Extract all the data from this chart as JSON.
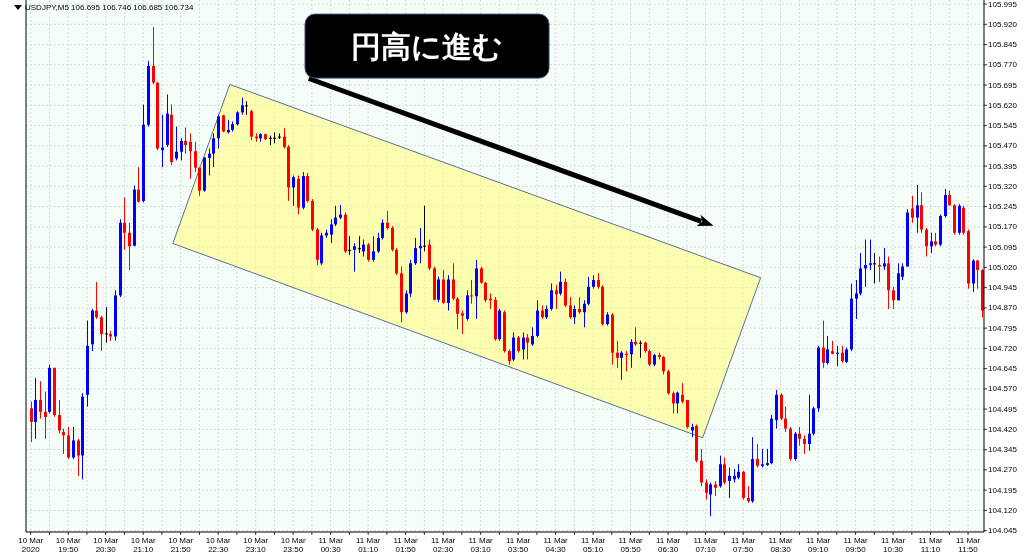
{
  "chart_data": {
    "type": "candlestick",
    "title": "USDJPY,M5 106.695 106.746 106.685 106.734",
    "annotations": [
      "円高に進む"
    ],
    "colors": [
      "#ff0000",
      "#0000ff",
      "#ff0000",
      "#ff0000",
      "#0000ff",
      "#ff0000",
      "#ff0000",
      "#ff0000",
      "#ff0000",
      "#0000ff",
      "#ff0000",
      "#0000ff",
      "#0000ff",
      "#0000ff",
      "#ff0000",
      "#ff0000",
      "#000000",
      "#ff0000",
      "#0000ff",
      "#0000ff",
      "#ff0000",
      "#ff0000",
      "#0000ff",
      "#ff0000",
      "#0000ff",
      "#0000ff",
      "#ff0000",
      "#ff0000",
      "#0000ff",
      "#0000ff",
      "#ff0000",
      "#0000ff",
      "#0000ff",
      "#ff0000",
      "#ff0000",
      "#ff0000",
      "#ff0000",
      "#0000ff",
      "#0000ff",
      "#0000ff",
      "#0000ff",
      "#ff0000",
      "#0000ff",
      "#0000ff",
      "#0000ff",
      "#0000ff",
      "#000000",
      "#ff0000",
      "#ff0000",
      "#0000ff",
      "#ff0000",
      "#000000",
      "#000000",
      "#000000",
      "#ff0000",
      "#ff0000",
      "#0000ff",
      "#ff0000",
      "#0000ff",
      "#ff0000",
      "#ff0000",
      "#ff0000",
      "#0000ff",
      "#0000ff",
      "#0000ff",
      "#0000ff",
      "#0000ff",
      "#ff0000",
      "#000000",
      "#0000ff",
      "#000000",
      "#0000ff",
      "#ff0000",
      "#0000ff",
      "#0000ff",
      "#0000ff",
      "#ff0000",
      "#ff0000",
      "#ff0000",
      "#ff0000",
      "#0000ff",
      "#0000ff",
      "#0000ff",
      "#0000ff",
      "#000000",
      "#ff0000",
      "#ff0000",
      "#0000ff",
      "#ff0000",
      "#0000ff",
      "#ff0000",
      "#ff0000",
      "#ff0000",
      "#0000ff",
      "#ff0000",
      "#0000ff",
      "#ff0000",
      "#ff0000",
      "#ff0000",
      "#ff0000",
      "#0000ff",
      "#ff0000",
      "#ff0000",
      "#0000ff",
      "#ff0000",
      "#0000ff",
      "#ff0000",
      "#0000ff",
      "#0000ff",
      "#ff0000",
      "#0000ff",
      "#0000ff",
      "#ff0000",
      "#0000ff",
      "#ff0000",
      "#ff0000",
      "#0000ff",
      "#ff0000",
      "#0000ff",
      "#0000ff",
      "#0000ff",
      "#ff0000",
      "#ff0000",
      "#0000ff",
      "#ff0000",
      "#ff0000",
      "#0000ff",
      "#ff0000",
      "#0000ff",
      "#ff0000",
      "#000000",
      "#ff0000",
      "#ff0000",
      "#0000ff",
      "#ff0000",
      "#ff0000",
      "#ff0000",
      "#ff0000",
      "#0000ff",
      "#ff0000",
      "#ff0000",
      "#0000ff",
      "#ff0000",
      "#ff0000",
      "#ff0000",
      "#0000ff",
      "#ff0000",
      "#0000ff",
      "#ff0000",
      "#0000ff",
      "#0000ff",
      "#0000ff",
      "#ff0000",
      "#ff0000",
      "#0000ff",
      "#ff0000",
      "#0000ff",
      "#0000ff",
      "#0000ff",
      "#0000ff",
      "#ff0000",
      "#ff0000",
      "#ff0000",
      "#0000ff",
      "#ff0000",
      "#ff0000",
      "#0000ff",
      "#0000ff",
      "#0000ff",
      "#ff0000",
      "#0000ff",
      "#ff0000",
      "#0000ff",
      "#ff0000",
      "#0000ff",
      "#0000ff",
      "#0000ff",
      "#0000ff",
      "#0000ff",
      "#0000ff",
      "#000000",
      "#ff0000",
      "#0000ff",
      "#ff0000",
      "#ff0000",
      "#0000ff",
      "#0000ff",
      "#0000ff",
      "#ff0000",
      "#0000ff",
      "#ff0000",
      "#ff0000",
      "#0000ff",
      "#ff0000",
      "#0000ff",
      "#0000ff",
      "#ff0000",
      "#ff0000",
      "#0000ff",
      "#ff0000",
      "#ff0000",
      "#0000ff",
      "#ff0000",
      "#ff0000"
    ],
    "grid": true,
    "xlim": [
      "2020-03-10T19:05",
      "2020-03-11T12:07"
    ],
    "ylim": [
      104.04,
      106.01
    ],
    "yticks": [
      105.995,
      {
        "value": 105.92,
        "label": "105.920"
      },
      105.845,
      {
        "value": 105.77,
        "label": "105.770"
      },
      105.695,
      {
        "value": 105.62,
        "label": "105.620"
      },
      105.545,
      {
        "value": 105.47,
        "label": "105.470"
      },
      105.395,
      {
        "value": 105.32,
        "label": "105.320"
      },
      105.245,
      {
        "value": 105.17,
        "label": "105.170"
      },
      105.095,
      {
        "value": 105.02,
        "label": "105.020"
      },
      104.945,
      {
        "value": 104.87,
        "label": "104.870"
      },
      104.795,
      {
        "value": 104.72,
        "label": "104.720"
      },
      104.645,
      {
        "value": 104.57,
        "label": "104.570"
      },
      104.495,
      {
        "value": 104.42,
        "label": "104.420"
      },
      104.345,
      {
        "value": 104.27,
        "label": "104.270"
      },
      104.195,
      {
        "value": 104.12,
        "label": "104.120"
      },
      104.045
    ],
    "xticks": [
      {
        "value": "2020-03-10T19:10",
        "label": "10 Mar 2020"
      },
      {
        "value": "2020-03-10T19:30",
        "label": null
      },
      {
        "value": "2020-03-10T19:50",
        "label": "10 Mar 19:50"
      },
      {
        "value": "2020-03-10T20:10",
        "label": null
      },
      {
        "value": "2020-03-10T20:30",
        "label": "10 Mar 20:30"
      },
      {
        "value": "2020-03-10T20:50",
        "label": null
      },
      {
        "value": "2020-03-10T21:10",
        "label": "10 Mar 21:10"
      },
      {
        "value": "2020-03-10T21:30",
        "label": null
      },
      {
        "value": "2020-03-10T21:50",
        "label": "10 Mar 21:50"
      },
      {
        "value": "2020-03-10T22:10",
        "label": null
      },
      {
        "value": "2020-03-10T22:30",
        "label": "10 Mar 22:30"
      },
      {
        "value": "2020-03-10T22:50",
        "label": null
      },
      {
        "value": "2020-03-10T23:10",
        "label": "10 Mar 23:10"
      },
      {
        "value": "2020-03-10T23:30",
        "label": null
      },
      {
        "value": "2020-03-10T23:50",
        "label": "10 Mar 23:50"
      },
      {
        "value": "2020-03-11T00:10",
        "label": null
      },
      {
        "value": "2020-03-11T00:30",
        "label": "11 Mar 00:30"
      },
      {
        "value": "2020-03-11T00:50",
        "label": null
      },
      {
        "value": "2020-03-11T01:10",
        "label": "11 Mar 01:10"
      },
      {
        "value": "2020-03-11T01:30",
        "label": null
      },
      {
        "value": "2020-03-11T01:50",
        "label": "11 Mar 01:50"
      },
      {
        "value": "2020-03-11T02:10",
        "label": null
      },
      {
        "value": "2020-03-11T02:30",
        "label": "11 Mar 02:30"
      },
      {
        "value": "2020-03-11T02:50",
        "label": null
      },
      {
        "value": "2020-03-11T03:10",
        "label": "11 Mar 03:10"
      },
      {
        "value": "2020-03-11T03:30",
        "label": null
      },
      {
        "value": "2020-03-11T03:50",
        "label": "11 Mar 03:50"
      },
      {
        "value": "2020-03-11T04:10",
        "label": null
      },
      {
        "value": "2020-03-11T04:30",
        "label": "11 Mar 04:30"
      },
      {
        "value": "2020-03-11T04:50",
        "label": null
      },
      {
        "value": "2020-03-11T05:10",
        "label": "11 Mar 05:10"
      },
      {
        "value": "2020-03-11T05:30",
        "label": null
      },
      {
        "value": "2020-03-11T05:50",
        "label": "11 Mar 05:50"
      },
      {
        "value": "2020-03-11T06:10",
        "label": null
      },
      {
        "value": "2020-03-11T06:30",
        "label": "11 Mar 06:30"
      },
      {
        "value": "2020-03-11T06:50",
        "label": null
      },
      {
        "value": "2020-03-11T07:10",
        "label": "11 Mar 07:10"
      },
      {
        "value": "2020-03-11T07:30",
        "label": null
      },
      {
        "value": "2020-03-11T07:50",
        "label": "11 Mar 07:50"
      },
      {
        "value": "2020-03-11T08:10",
        "label": null
      },
      {
        "value": "2020-03-11T08:30",
        "label": "11 Mar 08:30"
      },
      {
        "value": "2020-03-11T08:50",
        "label": null
      },
      {
        "value": "2020-03-11T09:10",
        "label": "11 Mar 09:10"
      },
      {
        "value": "2020-03-11T09:30",
        "label": null
      },
      {
        "value": "2020-03-11T09:50",
        "label": "11 Mar 09:50"
      },
      {
        "value": "2020-03-11T10:10",
        "label": null
      },
      {
        "value": "2020-03-11T10:30",
        "label": "11 Mar 10:30"
      },
      {
        "value": "2020-03-11T10:50",
        "label": null
      },
      {
        "value": "2020-03-11T11:10",
        "label": "11 Mar 11:10"
      },
      {
        "value": "2020-03-11T11:30",
        "label": null
      },
      {
        "value": "2020-03-11T11:50",
        "label": "11 Mar 11:50"
      }
    ],
    "x": [
      "2020-03-10T19:10",
      "2020-03-10T19:15",
      "2020-03-10T19:20",
      "2020-03-10T19:25",
      "2020-03-10T19:30",
      "2020-03-10T19:35",
      "2020-03-10T19:40",
      "2020-03-10T19:45",
      "2020-03-10T19:50",
      "2020-03-10T19:55",
      "2020-03-10T20:00",
      "2020-03-10T20:05",
      "2020-03-10T20:10",
      "2020-03-10T20:15",
      "2020-03-10T20:20",
      "2020-03-10T20:25",
      "2020-03-10T20:30",
      "2020-03-10T20:35",
      "2020-03-10T20:40",
      "2020-03-10T20:45",
      "2020-03-10T20:50",
      "2020-03-10T20:55",
      "2020-03-10T21:00",
      "2020-03-10T21:05",
      "2020-03-10T21:10",
      "2020-03-10T21:15",
      "2020-03-10T21:20",
      "2020-03-10T21:25",
      "2020-03-10T21:30",
      "2020-03-10T21:35",
      "2020-03-10T21:40",
      "2020-03-10T21:45",
      "2020-03-10T21:50",
      "2020-03-10T21:55",
      "2020-03-10T22:00",
      "2020-03-10T22:05",
      "2020-03-10T22:10",
      "2020-03-10T22:15",
      "2020-03-10T22:20",
      "2020-03-10T22:25",
      "2020-03-10T22:30",
      "2020-03-10T22:35",
      "2020-03-10T22:40",
      "2020-03-10T22:45",
      "2020-03-10T22:50",
      "2020-03-10T22:55",
      "2020-03-10T23:00",
      "2020-03-10T23:05",
      "2020-03-10T23:10",
      "2020-03-10T23:15",
      "2020-03-10T23:20",
      "2020-03-10T23:25",
      "2020-03-10T23:30",
      "2020-03-10T23:35",
      "2020-03-10T23:40",
      "2020-03-10T23:45",
      "2020-03-10T23:50",
      "2020-03-10T23:55",
      "2020-03-11T00:00",
      "2020-03-11T00:05",
      "2020-03-11T00:10",
      "2020-03-11T00:15",
      "2020-03-11T00:20",
      "2020-03-11T00:25",
      "2020-03-11T00:30",
      "2020-03-11T00:35",
      "2020-03-11T00:40",
      "2020-03-11T00:45",
      "2020-03-11T00:50",
      "2020-03-11T00:55",
      "2020-03-11T01:00",
      "2020-03-11T01:05",
      "2020-03-11T01:10",
      "2020-03-11T01:15",
      "2020-03-11T01:20",
      "2020-03-11T01:25",
      "2020-03-11T01:30",
      "2020-03-11T01:35",
      "2020-03-11T01:40",
      "2020-03-11T01:45",
      "2020-03-11T01:50",
      "2020-03-11T01:55",
      "2020-03-11T02:00",
      "2020-03-11T02:05",
      "2020-03-11T02:10",
      "2020-03-11T02:15",
      "2020-03-11T02:20",
      "2020-03-11T02:25",
      "2020-03-11T02:30",
      "2020-03-11T02:35",
      "2020-03-11T02:40",
      "2020-03-11T02:45",
      "2020-03-11T02:50",
      "2020-03-11T02:55",
      "2020-03-11T03:00",
      "2020-03-11T03:05",
      "2020-03-11T03:10",
      "2020-03-11T03:15",
      "2020-03-11T03:20",
      "2020-03-11T03:25",
      "2020-03-11T03:30",
      "2020-03-11T03:35",
      "2020-03-11T03:40",
      "2020-03-11T03:45",
      "2020-03-11T03:50",
      "2020-03-11T03:55",
      "2020-03-11T04:00",
      "2020-03-11T04:05",
      "2020-03-11T04:10",
      "2020-03-11T04:15",
      "2020-03-11T04:20",
      "2020-03-11T04:25",
      "2020-03-11T04:30",
      "2020-03-11T04:35",
      "2020-03-11T04:40",
      "2020-03-11T04:45",
      "2020-03-11T04:50",
      "2020-03-11T04:55",
      "2020-03-11T05:00",
      "2020-03-11T05:05",
      "2020-03-11T05:10",
      "2020-03-11T05:15",
      "2020-03-11T05:20",
      "2020-03-11T05:25",
      "2020-03-11T05:30",
      "2020-03-11T05:35",
      "2020-03-11T05:40",
      "2020-03-11T05:45",
      "2020-03-11T05:50",
      "2020-03-11T05:55",
      "2020-03-11T06:00",
      "2020-03-11T06:05",
      "2020-03-11T06:10",
      "2020-03-11T06:15",
      "2020-03-11T06:20",
      "2020-03-11T06:25",
      "2020-03-11T06:30",
      "2020-03-11T06:35",
      "2020-03-11T06:40",
      "2020-03-11T06:45",
      "2020-03-11T06:50",
      "2020-03-11T06:55",
      "2020-03-11T07:00",
      "2020-03-11T07:05",
      "2020-03-11T07:10",
      "2020-03-11T07:15",
      "2020-03-11T07:20",
      "2020-03-11T07:25",
      "2020-03-11T07:30",
      "2020-03-11T07:35",
      "2020-03-11T07:40",
      "2020-03-11T07:45",
      "2020-03-11T07:50",
      "2020-03-11T07:55",
      "2020-03-11T08:00",
      "2020-03-11T08:05",
      "2020-03-11T08:10",
      "2020-03-11T08:15",
      "2020-03-11T08:20",
      "2020-03-11T08:25",
      "2020-03-11T08:30",
      "2020-03-11T08:35",
      "2020-03-11T08:40",
      "2020-03-11T08:45",
      "2020-03-11T08:50",
      "2020-03-11T08:55",
      "2020-03-11T09:00",
      "2020-03-11T09:05",
      "2020-03-11T09:10",
      "2020-03-11T09:15",
      "2020-03-11T09:20",
      "2020-03-11T09:25",
      "2020-03-11T09:30",
      "2020-03-11T09:35",
      "2020-03-11T09:40",
      "2020-03-11T09:45",
      "2020-03-11T09:50",
      "2020-03-11T09:55",
      "2020-03-11T10:00",
      "2020-03-11T10:05",
      "2020-03-11T10:10",
      "2020-03-11T10:15",
      "2020-03-11T10:20",
      "2020-03-11T10:25",
      "2020-03-11T10:30",
      "2020-03-11T10:35",
      "2020-03-11T10:40",
      "2020-03-11T10:45",
      "2020-03-11T10:50",
      "2020-03-11T10:55",
      "2020-03-11T11:00",
      "2020-03-11T11:05",
      "2020-03-11T11:10",
      "2020-03-11T11:15",
      "2020-03-11T11:20",
      "2020-03-11T11:25",
      "2020-03-11T11:30",
      "2020-03-11T11:35",
      "2020-03-11T11:40",
      "2020-03-11T11:45",
      "2020-03-11T11:50",
      "2020-03-11T11:55",
      "2020-03-11T12:00",
      "2020-03-11T12:05"
    ],
    "ohlc": [
      [
        104.498,
        104.523,
        104.373,
        104.448
      ],
      [
        104.448,
        104.61,
        104.385,
        104.529
      ],
      [
        104.529,
        104.598,
        104.46,
        104.485
      ],
      [
        104.485,
        104.56,
        104.385,
        104.466
      ],
      [
        104.485,
        104.66,
        104.479,
        104.648
      ],
      [
        104.648,
        104.648,
        104.466,
        104.473
      ],
      [
        104.473,
        104.529,
        104.404,
        104.416
      ],
      [
        104.41,
        104.423,
        104.329,
        104.398
      ],
      [
        104.398,
        104.429,
        104.31,
        104.316
      ],
      [
        104.316,
        104.429,
        104.31,
        104.379
      ],
      [
        104.379,
        104.385,
        104.248,
        104.323
      ],
      [
        104.323,
        104.554,
        104.235,
        104.541
      ],
      [
        104.548,
        104.823,
        104.504,
        104.729
      ],
      [
        104.735,
        104.866,
        104.71,
        104.86
      ],
      [
        104.86,
        104.966,
        104.829,
        104.835
      ],
      [
        104.835,
        104.841,
        104.71,
        104.773
      ],
      [
        104.775,
        104.873,
        104.741,
        104.775
      ],
      [
        104.773,
        104.785,
        104.748,
        104.764
      ],
      [
        104.764,
        104.935,
        104.748,
        104.916
      ],
      [
        104.916,
        105.198,
        104.91,
        105.185
      ],
      [
        105.185,
        105.279,
        105.085,
        105.148
      ],
      [
        105.148,
        105.185,
        105.01,
        105.098
      ],
      [
        105.1,
        105.323,
        105.098,
        105.308
      ],
      [
        105.308,
        105.391,
        105.26,
        105.263
      ],
      [
        105.266,
        105.623,
        105.26,
        105.548
      ],
      [
        105.548,
        105.785,
        105.541,
        105.766
      ],
      [
        105.766,
        105.91,
        105.698,
        105.704
      ],
      [
        105.704,
        105.704,
        105.454,
        105.46
      ],
      [
        105.454,
        105.585,
        105.391,
        105.464
      ],
      [
        105.473,
        105.66,
        105.466,
        105.589
      ],
      [
        105.585,
        105.623,
        105.398,
        105.41
      ],
      [
        105.423,
        105.541,
        105.416,
        105.448
      ],
      [
        105.448,
        105.498,
        105.416,
        105.488
      ],
      [
        105.488,
        105.538,
        105.441,
        105.473
      ],
      [
        105.485,
        105.516,
        105.348,
        105.45
      ],
      [
        105.45,
        105.485,
        105.373,
        105.389
      ],
      [
        105.389,
        105.391,
        105.285,
        105.304
      ],
      [
        105.304,
        105.429,
        105.3,
        105.426
      ],
      [
        105.425,
        105.46,
        105.36,
        105.441
      ],
      [
        105.441,
        105.516,
        105.391,
        105.498
      ],
      [
        105.498,
        105.585,
        105.46,
        105.579
      ],
      [
        105.583,
        105.585,
        105.52,
        105.523
      ],
      [
        105.52,
        105.566,
        105.516,
        105.529
      ],
      [
        105.529,
        105.56,
        105.523,
        105.55
      ],
      [
        105.55,
        105.598,
        105.545,
        105.594
      ],
      [
        105.594,
        105.648,
        105.585,
        105.62
      ],
      [
        105.62,
        105.635,
        105.585,
        105.62
      ],
      [
        105.598,
        105.604,
        105.491,
        105.504
      ],
      [
        105.504,
        105.516,
        105.485,
        105.498
      ],
      [
        105.498,
        105.516,
        105.485,
        105.513
      ],
      [
        105.513,
        105.515,
        105.491,
        105.495
      ],
      [
        105.5,
        105.508,
        105.473,
        105.5
      ],
      [
        105.5,
        105.52,
        105.479,
        105.5
      ],
      [
        105.504,
        105.516,
        105.495,
        105.504
      ],
      [
        105.504,
        105.535,
        105.46,
        105.466
      ],
      [
        105.466,
        105.473,
        105.266,
        105.316
      ],
      [
        105.316,
        105.36,
        105.248,
        105.354
      ],
      [
        105.348,
        105.36,
        105.216,
        105.241
      ],
      [
        105.241,
        105.373,
        105.235,
        105.358
      ],
      [
        105.358,
        105.37,
        105.26,
        105.266
      ],
      [
        105.266,
        105.273,
        105.154,
        105.16
      ],
      [
        105.16,
        105.166,
        105.029,
        105.048
      ],
      [
        105.035,
        105.148,
        105.029,
        105.138
      ],
      [
        105.138,
        105.16,
        105.129,
        105.148
      ],
      [
        105.141,
        105.198,
        105.11,
        105.179
      ],
      [
        105.179,
        105.248,
        105.173,
        105.204
      ],
      [
        105.204,
        105.251,
        105.198,
        105.215
      ],
      [
        105.215,
        105.223,
        105.073,
        105.079
      ],
      [
        105.085,
        105.135,
        105.066,
        105.085
      ],
      [
        105.085,
        105.11,
        105.004,
        105.098
      ],
      [
        105.091,
        105.135,
        105.073,
        105.091
      ],
      [
        105.079,
        105.123,
        105.06,
        105.104
      ],
      [
        105.104,
        105.11,
        105.041,
        105.048
      ],
      [
        105.048,
        105.135,
        105.041,
        105.079
      ],
      [
        105.079,
        105.148,
        105.073,
        105.129
      ],
      [
        105.129,
        105.198,
        105.123,
        105.185
      ],
      [
        105.185,
        105.229,
        105.16,
        105.166
      ],
      [
        105.166,
        105.173,
        105.079,
        105.085
      ],
      [
        105.085,
        105.091,
        104.991,
        104.998
      ],
      [
        104.998,
        105.023,
        104.816,
        104.854
      ],
      [
        104.854,
        104.935,
        104.848,
        104.923
      ],
      [
        104.923,
        105.048,
        104.91,
        105.035
      ],
      [
        105.035,
        105.129,
        105.029,
        105.091
      ],
      [
        105.091,
        105.166,
        105.035,
        105.1
      ],
      [
        105.1,
        105.248,
        105.079,
        105.1
      ],
      [
        105.104,
        105.123,
        105.01,
        105.016
      ],
      [
        105.016,
        105.023,
        104.898,
        104.9
      ],
      [
        104.9,
        104.985,
        104.891,
        104.975
      ],
      [
        104.975,
        105.01,
        104.885,
        104.888
      ],
      [
        104.888,
        104.991,
        104.86,
        104.975
      ],
      [
        104.975,
        105.035,
        104.898,
        104.904
      ],
      [
        104.904,
        104.91,
        104.791,
        104.848
      ],
      [
        104.85,
        104.86,
        104.773,
        104.841
      ],
      [
        104.829,
        104.935,
        104.823,
        104.916
      ],
      [
        104.916,
        104.973,
        104.885,
        104.913
      ],
      [
        104.913,
        105.048,
        104.829,
        105.016
      ],
      [
        105.016,
        105.023,
        104.96,
        104.963
      ],
      [
        104.963,
        104.966,
        104.891,
        104.898
      ],
      [
        104.904,
        104.923,
        104.866,
        104.898
      ],
      [
        104.9,
        104.91,
        104.748,
        104.754
      ],
      [
        104.754,
        104.866,
        104.748,
        104.86
      ],
      [
        104.854,
        104.86,
        104.704,
        104.71
      ],
      [
        104.71,
        104.716,
        104.66,
        104.673
      ],
      [
        104.679,
        104.779,
        104.673,
        104.76
      ],
      [
        104.76,
        104.766,
        104.704,
        104.71
      ],
      [
        104.716,
        104.779,
        104.679,
        104.76
      ],
      [
        104.76,
        104.773,
        104.679,
        104.741
      ],
      [
        104.735,
        104.798,
        104.729,
        104.766
      ],
      [
        104.766,
        104.898,
        104.76,
        104.86
      ],
      [
        104.86,
        104.879,
        104.829,
        104.835
      ],
      [
        104.835,
        104.879,
        104.829,
        104.866
      ],
      [
        104.866,
        104.96,
        104.86,
        104.935
      ],
      [
        104.935,
        104.954,
        104.866,
        104.92
      ],
      [
        104.923,
        105.004,
        104.916,
        104.966
      ],
      [
        104.966,
        104.979,
        104.873,
        104.879
      ],
      [
        104.879,
        104.91,
        104.829,
        104.835
      ],
      [
        104.835,
        104.879,
        104.81,
        104.866
      ],
      [
        104.866,
        104.91,
        104.848,
        104.854
      ],
      [
        104.854,
        104.898,
        104.798,
        104.885
      ],
      [
        104.885,
        104.985,
        104.879,
        104.948
      ],
      [
        104.948,
        104.991,
        104.941,
        104.973
      ],
      [
        104.973,
        104.998,
        104.941,
        104.948
      ],
      [
        104.948,
        104.954,
        104.804,
        104.81
      ],
      [
        104.81,
        104.854,
        104.804,
        104.845
      ],
      [
        104.845,
        104.85,
        104.66,
        104.704
      ],
      [
        104.704,
        104.748,
        104.648,
        104.685
      ],
      [
        104.685,
        104.71,
        104.604,
        104.704
      ],
      [
        104.7,
        104.71,
        104.635,
        104.695
      ],
      [
        104.698,
        104.754,
        104.648,
        104.744
      ],
      [
        104.744,
        104.798,
        104.729,
        104.735
      ],
      [
        104.741,
        104.748,
        104.685,
        104.741
      ],
      [
        104.741,
        104.745,
        104.704,
        104.71
      ],
      [
        104.71,
        104.716,
        104.654,
        104.66
      ],
      [
        104.66,
        104.7,
        104.654,
        104.695
      ],
      [
        104.695,
        104.704,
        104.679,
        104.688
      ],
      [
        104.688,
        104.691,
        104.623,
        104.635
      ],
      [
        104.635,
        104.641,
        104.548,
        104.554
      ],
      [
        104.554,
        104.56,
        104.479,
        104.516
      ],
      [
        104.516,
        104.56,
        104.479,
        104.556
      ],
      [
        104.548,
        104.591,
        104.516,
        104.523
      ],
      [
        104.529,
        104.529,
        104.423,
        104.429
      ],
      [
        104.416,
        104.441,
        104.391,
        104.429
      ],
      [
        104.433,
        104.438,
        104.298,
        104.304
      ],
      [
        104.304,
        104.348,
        104.21,
        104.223
      ],
      [
        104.223,
        104.235,
        104.16,
        104.185
      ],
      [
        104.179,
        104.223,
        104.098,
        104.216
      ],
      [
        104.216,
        104.229,
        104.173,
        104.204
      ],
      [
        104.21,
        104.323,
        104.204,
        104.291
      ],
      [
        104.291,
        104.316,
        104.216,
        104.223
      ],
      [
        104.229,
        104.279,
        104.166,
        104.248
      ],
      [
        104.235,
        104.273,
        104.223,
        104.248
      ],
      [
        104.241,
        104.291,
        104.235,
        104.263
      ],
      [
        104.263,
        104.266,
        104.16,
        104.166
      ],
      [
        104.166,
        104.21,
        104.148,
        104.154
      ],
      [
        104.154,
        104.391,
        104.148,
        104.31
      ],
      [
        104.31,
        104.366,
        104.279,
        104.285
      ],
      [
        104.285,
        104.348,
        104.279,
        104.291
      ],
      [
        104.288,
        104.348,
        104.285,
        104.295
      ],
      [
        104.295,
        104.473,
        104.291,
        104.46
      ],
      [
        104.454,
        104.566,
        104.423,
        104.548
      ],
      [
        104.548,
        104.554,
        104.454,
        104.46
      ],
      [
        104.46,
        104.504,
        104.41,
        104.423
      ],
      [
        104.423,
        104.429,
        104.304,
        104.31
      ],
      [
        104.31,
        104.41,
        104.304,
        104.404
      ],
      [
        104.404,
        104.429,
        104.36,
        104.385
      ],
      [
        104.385,
        104.398,
        104.329,
        104.366
      ],
      [
        104.366,
        104.548,
        104.341,
        104.404
      ],
      [
        104.404,
        104.504,
        104.398,
        104.498
      ],
      [
        104.498,
        104.729,
        104.485,
        104.723
      ],
      [
        104.723,
        104.823,
        104.648,
        104.666
      ],
      [
        104.666,
        104.766,
        104.66,
        104.716
      ],
      [
        104.71,
        104.748,
        104.698,
        104.7
      ],
      [
        104.7,
        104.729,
        104.654,
        104.704
      ],
      [
        104.704,
        104.729,
        104.666,
        104.673
      ],
      [
        104.67,
        104.723,
        104.666,
        104.716
      ],
      [
        104.716,
        104.96,
        104.71,
        104.904
      ],
      [
        104.904,
        104.973,
        104.829,
        104.923
      ],
      [
        104.923,
        105.073,
        104.916,
        105.016
      ],
      [
        105.016,
        105.123,
        104.948,
        105.029
      ],
      [
        105.029,
        105.123,
        105.01,
        105.035
      ],
      [
        105.035,
        105.073,
        104.96,
        105.035
      ],
      [
        105.029,
        105.06,
        104.966,
        105.023
      ],
      [
        105.023,
        105.091,
        105.01,
        105.035
      ],
      [
        105.035,
        105.06,
        104.866,
        104.935
      ],
      [
        104.935,
        104.948,
        104.866,
        104.898
      ],
      [
        104.898,
        105.035,
        104.898,
        104.998
      ],
      [
        104.985,
        105.035,
        104.973,
        105.023
      ],
      [
        105.023,
        105.235,
        105.023,
        105.223
      ],
      [
        105.238,
        105.285,
        105.185,
        105.204
      ],
      [
        105.204,
        105.325,
        105.148,
        105.25
      ],
      [
        105.25,
        105.298,
        105.148,
        105.16
      ],
      [
        105.16,
        105.166,
        105.06,
        105.098
      ],
      [
        105.098,
        105.148,
        105.073,
        105.116
      ],
      [
        105.116,
        105.148,
        105.098,
        105.104
      ],
      [
        105.104,
        105.216,
        105.098,
        105.21
      ],
      [
        105.21,
        105.31,
        105.204,
        105.288
      ],
      [
        105.288,
        105.304,
        105.248,
        105.25
      ],
      [
        105.25,
        105.254,
        105.141,
        105.148
      ],
      [
        105.148,
        105.254,
        105.141,
        105.248
      ],
      [
        105.241,
        105.248,
        105.141,
        105.148
      ],
      [
        105.154,
        105.16,
        104.941,
        104.96
      ],
      [
        104.96,
        105.05,
        104.929,
        105.045
      ],
      [
        105.045,
        105.048,
        104.941,
        105.01
      ],
      [
        105.01,
        105.013,
        104.835,
        104.86
      ]
    ]
  }
}
